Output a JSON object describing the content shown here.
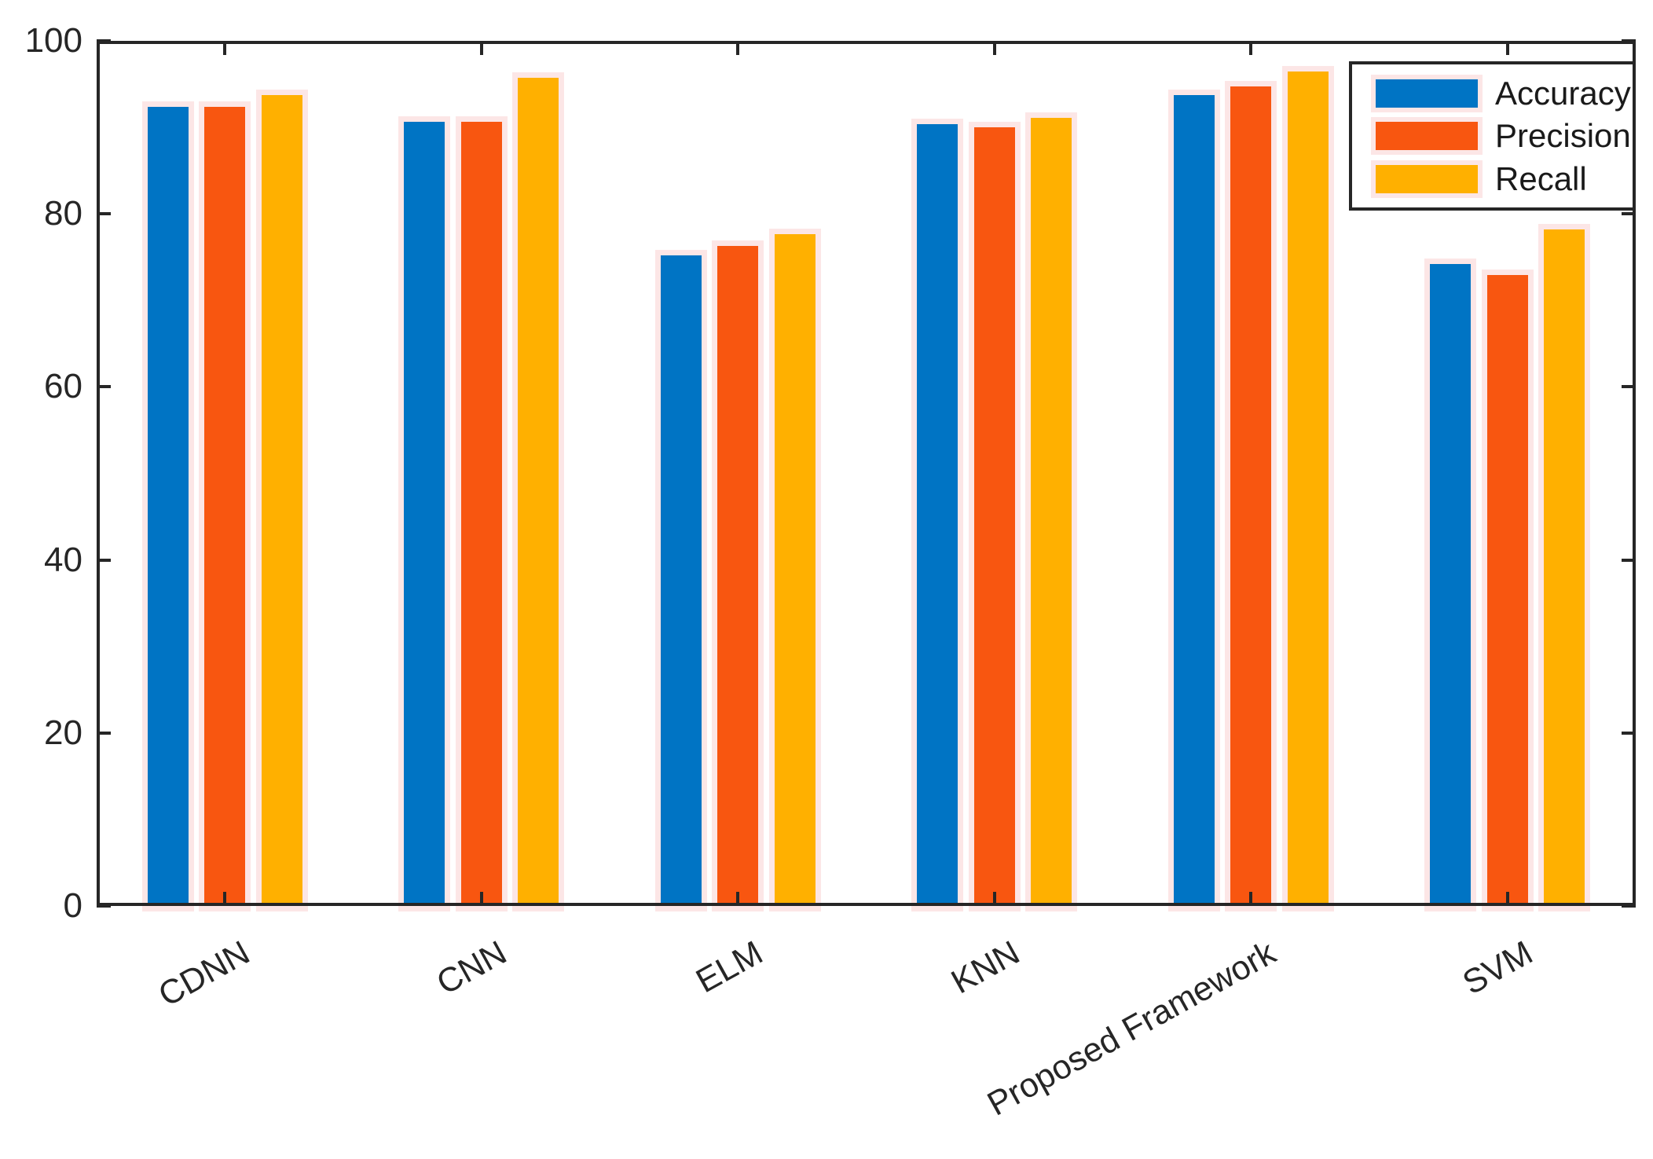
{
  "chart_data": {
    "type": "bar",
    "title": "",
    "xlabel": "",
    "ylabel": "",
    "categories": [
      "CDNN",
      "CNN",
      "ELM",
      "KNN",
      "Proposed Framework",
      "SVM"
    ],
    "series": [
      {
        "name": "Accuracy",
        "color": "#0074C4",
        "values": [
          92.4,
          90.6,
          75.2,
          90.4,
          93.7,
          74.2
        ]
      },
      {
        "name": "Precision",
        "color": "#F85610",
        "values": [
          92.4,
          90.6,
          76.3,
          90.0,
          94.7,
          72.9
        ]
      },
      {
        "name": "Recall",
        "color": "#FFB000",
        "values": [
          93.7,
          95.7,
          77.7,
          91.1,
          96.5,
          78.2
        ]
      }
    ],
    "ylim": [
      0,
      100
    ],
    "yticks": [
      0,
      20,
      40,
      60,
      80,
      100
    ],
    "grid": false,
    "legend_position": "top-right",
    "bar_edge_color": "#FCE6E6",
    "axis_color": "#262626",
    "background": "#FFFFFF"
  }
}
